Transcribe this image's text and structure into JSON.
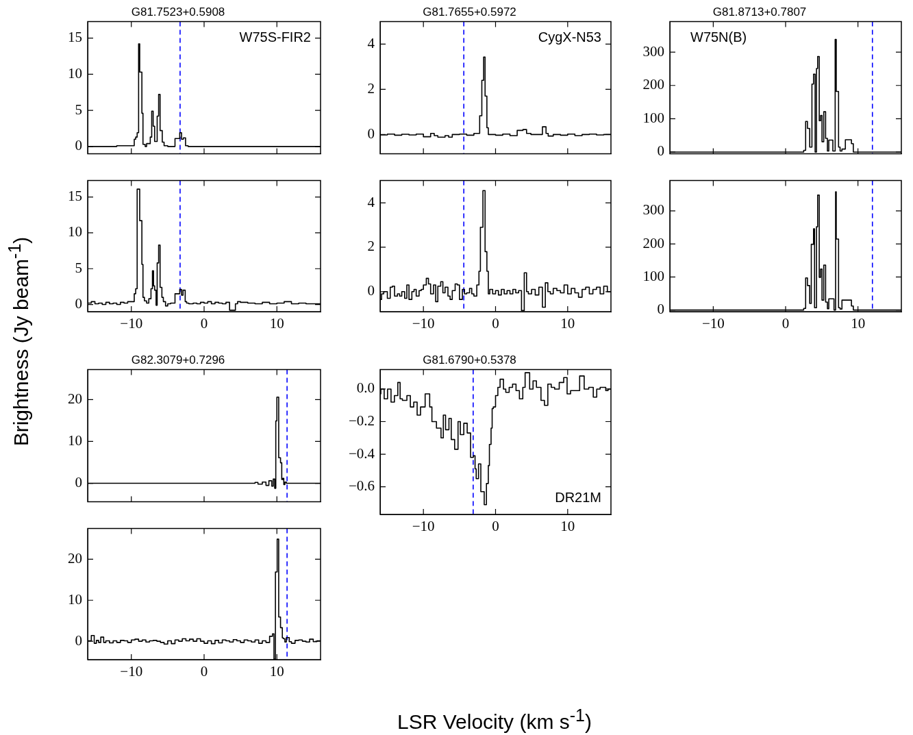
{
  "chart_data": [
    {
      "type": "step",
      "title": "G81.7523+0.5908",
      "ylabel": "Brightness (Jy beam$^{-1}$)",
      "annotations": [
        "W75S-FIR2"
      ],
      "xlim": [
        -16,
        16
      ],
      "ylim": [
        -1,
        17.3
      ],
      "xticks": [
        -10,
        0,
        10
      ],
      "yticks": [
        0,
        5,
        10,
        15
      ],
      "tick_labels": "y",
      "ref_lines": [
        {
          "axis": "x",
          "value": -3.3,
          "color": "#0000ff",
          "line_style": "dashed"
        }
      ],
      "series": [
        {
          "color": "#000000",
          "x": [
            -16,
            -12,
            -9.6,
            -9.4,
            -9.2,
            -9.0,
            -8.85,
            -8.55,
            -8.4,
            -8.1,
            -7.9,
            -7.4,
            -7.2,
            -7.0,
            -6.8,
            -6.45,
            -6.25,
            -6.05,
            -5.75,
            -5.5,
            -5.0,
            -4.0,
            -3.35,
            -3.1,
            -2.85,
            -2.55,
            -2.2,
            -2.0,
            0,
            5,
            10,
            16
          ],
          "values": [
            0,
            0,
            0.1,
            1.0,
            1.3,
            1.9,
            14.2,
            10.3,
            4.6,
            0.3,
            0,
            0.4,
            1.3,
            4.9,
            2.8,
            0.7,
            4.2,
            7.2,
            2.2,
            0.6,
            0.1,
            0,
            1.1,
            1.9,
            1.0,
            1.2,
            0.1,
            0,
            0,
            0,
            0,
            0
          ]
        }
      ]
    },
    {
      "type": "step",
      "xlim": [
        -16,
        16
      ],
      "ylim": [
        -1,
        17.3
      ],
      "xticks": [
        -10,
        0,
        10
      ],
      "yticks": [
        0,
        5,
        10,
        15
      ],
      "ref_lines": [
        {
          "axis": "x",
          "value": -3.3,
          "color": "#0000ff",
          "line_style": "dashed"
        }
      ],
      "series": [
        {
          "color": "#000000",
          "x": [
            -16,
            -15.5,
            -15,
            -14.5,
            -14,
            -13.5,
            -13,
            -12.5,
            -12,
            -11.5,
            -11,
            -10.5,
            -10,
            -9.6,
            -9.4,
            -9.2,
            -8.85,
            -8.55,
            -8.4,
            -8.2,
            -7.9,
            -7.6,
            -7.3,
            -7.1,
            -6.95,
            -6.8,
            -6.6,
            -6.45,
            -6.25,
            -6.05,
            -5.8,
            -5.6,
            -5.3,
            -5.0,
            -4.6,
            -4.0,
            -3.35,
            -3.1,
            -2.9,
            -2.6,
            -2.4,
            -2.1,
            -1.5,
            -1,
            -0.5,
            0,
            0.5,
            1,
            1.5,
            2,
            2.5,
            3,
            3.5,
            4.3,
            4.6,
            5,
            6,
            7,
            8,
            9,
            10,
            11,
            12,
            13,
            14,
            15,
            16
          ],
          "values": [
            0.3,
            0.2,
            0.4,
            0.1,
            0.2,
            0,
            0.3,
            0.1,
            0.2,
            0,
            0.3,
            0.2,
            0.4,
            0.4,
            1.5,
            2.2,
            16.1,
            11.7,
            5.6,
            1.0,
            0.5,
            0.2,
            0.8,
            2.2,
            4.7,
            2.6,
            2.0,
            -0.1,
            5.8,
            8.3,
            2.4,
            1.0,
            0.4,
            -0.2,
            0.1,
            0.2,
            1.5,
            2.1,
            1.3,
            2.0,
            0.4,
            0.2,
            0.1,
            0.2,
            0.1,
            0.3,
            0.2,
            0.4,
            0.1,
            0.3,
            0.2,
            0.1,
            0.3,
            -0.8,
            0.1,
            0.4,
            0.3,
            0.2,
            0.1,
            0.3,
            0.1,
            0.2,
            0.4,
            0.1,
            0.2,
            0.1,
            0.1
          ]
        }
      ]
    },
    {
      "type": "step",
      "title": "G81.7655+0.5972",
      "annotations": [
        "CygX-N53"
      ],
      "xlim": [
        -16,
        16
      ],
      "ylim": [
        -0.85,
        5
      ],
      "xticks": [
        -10,
        0,
        10
      ],
      "yticks": [
        0,
        2,
        4
      ],
      "tick_labels": "y",
      "ref_lines": [
        {
          "axis": "x",
          "value": -4.4,
          "color": "#0000ff",
          "line_style": "dashed"
        }
      ],
      "series": [
        {
          "color": "#000000",
          "x": [
            -16,
            -15,
            -14,
            -13,
            -12,
            -11,
            -10,
            -9,
            -8.5,
            -8,
            -7,
            -6.5,
            -6,
            -5,
            -4,
            -3,
            -2.2,
            -1.9,
            -1.65,
            -1.45,
            -1.2,
            -1.0,
            -0.8,
            0,
            1,
            2,
            3,
            3.8,
            4.3,
            4.9,
            5.5,
            6.5,
            7.0,
            7.3,
            8,
            9,
            10,
            11,
            12,
            13,
            14,
            15,
            16
          ],
          "values": [
            0,
            -0.02,
            0.02,
            -0.03,
            0.01,
            -0.02,
            0.02,
            -0.1,
            0.05,
            -0.05,
            -0.12,
            -0.05,
            -0.12,
            0,
            0.02,
            -0.03,
            0.05,
            0.83,
            2.4,
            3.43,
            1.7,
            0.3,
            0,
            0,
            -0.03,
            0.02,
            -0.05,
            0.18,
            0.22,
            0.05,
            0,
            0,
            0.34,
            0.05,
            -0.07,
            0,
            -0.03,
            0.02,
            -0.05,
            0,
            0.02,
            -0.02,
            0
          ]
        }
      ]
    },
    {
      "type": "step",
      "xlim": [
        -16,
        16
      ],
      "ylim": [
        -0.9,
        5
      ],
      "xticks": [
        -10,
        0,
        10
      ],
      "yticks": [
        0,
        2,
        4
      ],
      "ref_lines": [
        {
          "axis": "x",
          "value": -4.4,
          "color": "#0000ff",
          "line_style": "dashed"
        }
      ],
      "series": [
        {
          "color": "#000000",
          "x": [
            -16,
            -15.8,
            -15.5,
            -15,
            -14.6,
            -14.3,
            -14,
            -13.6,
            -13.3,
            -13,
            -12.6,
            -12.3,
            -12,
            -11.6,
            -11.3,
            -11,
            -10.6,
            -10.3,
            -10,
            -9.6,
            -9.3,
            -9,
            -8.6,
            -8.3,
            -8,
            -7.6,
            -7.3,
            -7,
            -6.6,
            -6.3,
            -6,
            -5.6,
            -5.3,
            -5,
            -4.6,
            -4.3,
            -4,
            -3.6,
            -3.3,
            -3,
            -2.6,
            -2.3,
            -2.1,
            -1.75,
            -1.45,
            -1.2,
            -1.0,
            -0.8,
            -0.4,
            0,
            0.4,
            0.8,
            1.2,
            1.6,
            2,
            2.4,
            2.8,
            3.2,
            3.6,
            3.98,
            4.3,
            4.55,
            5,
            5.5,
            6,
            6.5,
            6.9,
            7.25,
            7.6,
            8,
            8.5,
            9,
            9.5,
            10,
            10.5,
            11,
            11.5,
            12,
            12.5,
            13,
            13.5,
            14,
            14.5,
            15,
            15.5,
            16
          ],
          "values": [
            0.1,
            -0.35,
            -0.1,
            0,
            -0.3,
            0.2,
            0.25,
            -0.2,
            -0.1,
            -0.2,
            0,
            -0.3,
            0.3,
            -0.35,
            0,
            0.1,
            -0.2,
            0.05,
            0.1,
            0.3,
            0.6,
            0.35,
            -0.1,
            0.3,
            -0.45,
            0.25,
            0.45,
            -0.05,
            0.2,
            -0.2,
            -0.35,
            0.05,
            0.35,
            0.3,
            -0.35,
            0.1,
            -0.1,
            -0.05,
            0.15,
            -0.1,
            -0.2,
            0.3,
            0.92,
            2.9,
            4.55,
            1.8,
            0.92,
            -0.1,
            0.1,
            -0.1,
            0.05,
            -0.15,
            0.1,
            -0.1,
            0.05,
            -0.1,
            0.1,
            -0.05,
            0.05,
            -0.85,
            0.85,
            0,
            -0.1,
            0.1,
            -0.15,
            0.2,
            -0.7,
            0.4,
            0,
            -0.1,
            0.15,
            0.05,
            -0.05,
            0.3,
            -0.1,
            0.15,
            -0.05,
            -0.25,
            0.1,
            0.2,
            -0.1,
            0.1,
            0.2,
            -0.1,
            0.25,
            0
          ]
        }
      ]
    },
    {
      "type": "step",
      "title": "G81.8713+0.7807",
      "annotations": [
        "W75N(B)"
      ],
      "xlim": [
        -16,
        16
      ],
      "ylim": [
        -5,
        392
      ],
      "xticks": [
        -10,
        0,
        10
      ],
      "yticks": [
        0,
        100,
        200,
        300
      ],
      "tick_labels": "y",
      "ref_lines": [
        {
          "axis": "x",
          "value": 12,
          "color": "#0000ff",
          "line_style": "dashed"
        }
      ],
      "series": [
        {
          "color": "#000000",
          "x": [
            -16,
            2.5,
            2.77,
            3.02,
            3.33,
            3.64,
            3.86,
            4.08,
            4.27,
            4.43,
            4.65,
            4.84,
            5.03,
            5.27,
            5.53,
            5.78,
            5.97,
            6.53,
            6.85,
            7.0,
            7.32,
            7.53,
            7.79,
            8.26,
            9.1,
            9.36,
            9.6,
            16
          ],
          "values": [
            0,
            0,
            5,
            92,
            71,
            15,
            204,
            234,
            0,
            251,
            287,
            94,
            110,
            31,
            121,
            41,
            3,
            36,
            3,
            338,
            182,
            15,
            3,
            9,
            37,
            25,
            0,
            0
          ]
        }
      ]
    },
    {
      "type": "step",
      "xlim": [
        -16,
        16
      ],
      "ylim": [
        -5,
        392
      ],
      "xticks": [
        -10,
        0,
        10
      ],
      "yticks": [
        0,
        100,
        200,
        300
      ],
      "ref_lines": [
        {
          "axis": "x",
          "value": 12,
          "color": "#0000ff",
          "line_style": "dashed"
        }
      ],
      "series": [
        {
          "color": "#000000",
          "x": [
            -16,
            2.5,
            2.77,
            3.02,
            3.33,
            3.55,
            3.86,
            4.0,
            4.27,
            4.43,
            4.65,
            4.84,
            5.03,
            5.27,
            5.53,
            5.78,
            5.97,
            6.69,
            6.91,
            7.0,
            7.32,
            7.53,
            7.79,
            9.1,
            9.36,
            9.6,
            16
          ],
          "values": [
            0,
            0,
            5,
            97,
            74,
            20,
            199,
            246,
            7,
            252,
            348,
            99,
            124,
            30,
            136,
            24,
            4,
            34,
            0,
            358,
            215,
            7,
            3,
            30,
            12,
            0,
            0
          ]
        }
      ]
    },
    {
      "type": "step",
      "title": "G82.3079+0.7296",
      "xlim": [
        -16,
        16
      ],
      "ylim": [
        -4.4,
        27.2
      ],
      "xticks": [
        -10,
        0,
        10
      ],
      "yticks": [
        0,
        10,
        20
      ],
      "tick_labels": "y",
      "ref_lines": [
        {
          "axis": "x",
          "value": 11.4,
          "color": "#0000ff",
          "line_style": "dashed"
        }
      ],
      "series": [
        {
          "color": "#000000",
          "x": [
            -16,
            7,
            7.4,
            8.0,
            8.5,
            8.9,
            9.3,
            9.5,
            9.7,
            9.85,
            10.0,
            10.25,
            10.5,
            10.67,
            10.82,
            10.95,
            11.1,
            11.3,
            11.6,
            16
          ],
          "values": [
            0,
            0,
            0.2,
            -0.2,
            0.3,
            -0.5,
            0.6,
            -0.7,
            1.0,
            -1.2,
            14.9,
            20.6,
            6.1,
            4.9,
            0.9,
            1.2,
            -0.3,
            0.3,
            0,
            0
          ]
        }
      ]
    },
    {
      "type": "step",
      "xlim": [
        -16,
        16
      ],
      "ylim": [
        -4.5,
        27.5
      ],
      "xticks": [
        -10,
        0,
        10
      ],
      "yticks": [
        0,
        10,
        20
      ],
      "ref_lines": [
        {
          "axis": "x",
          "value": 11.4,
          "color": "#0000ff",
          "line_style": "dashed"
        }
      ],
      "series": [
        {
          "color": "#000000",
          "x": [
            -16,
            -15.5,
            -15.1,
            -14.8,
            -14.5,
            -14.2,
            -13.8,
            -13.5,
            -13,
            -12.5,
            -12,
            -11.5,
            -11,
            -10.5,
            -10,
            -9.5,
            -9,
            -8.5,
            -8,
            -7.5,
            -7,
            -6.5,
            -6,
            -5.5,
            -5,
            -4.5,
            -4,
            -3.5,
            -3,
            -2.5,
            -2,
            -1.5,
            -1,
            -0.5,
            0,
            0.5,
            1,
            1.5,
            2,
            2.5,
            3,
            3.5,
            4,
            4.5,
            5,
            5.5,
            6,
            6.5,
            7,
            7.5,
            8,
            8.5,
            9,
            9.4,
            9.6,
            9.8,
            10.04,
            10.25,
            10.5,
            10.75,
            10.9,
            11.1,
            11.3,
            11.7,
            12,
            12.5,
            13,
            13.5,
            14,
            14.5,
            15,
            15.5,
            16
          ],
          "values": [
            0.3,
            0.1,
            1.4,
            -0.5,
            0.2,
            -0.3,
            1.0,
            -0.3,
            0.1,
            -0.4,
            0.1,
            -0.3,
            0.2,
            0.1,
            -0.3,
            0.3,
            0.5,
            0,
            0.3,
            -0.2,
            0.1,
            0.2,
            0,
            -0.3,
            -0.7,
            0.1,
            -0.6,
            0.3,
            0,
            0.6,
            0.1,
            0.5,
            0,
            0.6,
            0,
            -0.5,
            0.1,
            -0.6,
            0.2,
            -0.4,
            0.3,
            0.1,
            -0.2,
            0.4,
            0.1,
            -0.3,
            0.3,
            0.1,
            -0.2,
            0.3,
            -0.5,
            0.1,
            -0.3,
            1.2,
            1.8,
            -4.4,
            16.9,
            24.9,
            5.9,
            3.3,
            0.8,
            0.6,
            -0.2,
            0.9,
            -0.1,
            -0.5,
            0.2,
            0.3,
            0,
            -0.2,
            0.5,
            -0.1,
            0.1
          ]
        }
      ]
    },
    {
      "type": "step",
      "title": "G81.6790+0.5378",
      "xlabel": "LSR Velocity (km s$^{-1}$)",
      "annotations": [
        "DR21M"
      ],
      "xlim": [
        -16,
        16
      ],
      "ylim": [
        -0.77,
        0.12
      ],
      "xticks": [
        -10,
        0,
        10
      ],
      "yticks": [
        {
          "value": 0,
          "label": "0.0"
        },
        {
          "value": -0.2,
          "label": "−0.2"
        },
        {
          "value": -0.4,
          "label": "−0.4"
        },
        {
          "value": -0.6,
          "label": "−0.6"
        }
      ],
      "ref_lines": [
        {
          "axis": "x",
          "value": -3.1,
          "color": "#0000ff",
          "line_style": "dashed"
        }
      ],
      "series": [
        {
          "color": "#000000",
          "x": [
            -16,
            -15.9,
            -15.44,
            -14.97,
            -14.49,
            -14.02,
            -13.55,
            -13.23,
            -12.91,
            -12.29,
            -11.81,
            -11.34,
            -10.87,
            -10.4,
            -9.76,
            -9.13,
            -8.82,
            -8.19,
            -7.56,
            -7.24,
            -6.93,
            -6.46,
            -6.14,
            -5.67,
            -5.2,
            -4.88,
            -4.4,
            -3.93,
            -3.46,
            -3.08,
            -2.84,
            -2.68,
            -2.36,
            -2.04,
            -1.57,
            -1.26,
            -1.0,
            -0.85,
            -0.62,
            -0.47,
            -0.31,
            0,
            0.32,
            0.63,
            1.1,
            1.42,
            1.89,
            2.36,
            2.84,
            3.31,
            3.78,
            4.1,
            4.73,
            5.2,
            5.67,
            6.3,
            6.78,
            7.25,
            7.72,
            8.19,
            8.83,
            9.45,
            9.92,
            10.4,
            11.03,
            11.66,
            12.29,
            12.92,
            13.55,
            14.03,
            14.5,
            15.28,
            15.6,
            16
          ],
          "values": [
            -0.11,
            -0.03,
            0,
            -0.06,
            0,
            -0.08,
            -0.04,
            0.04,
            -0.06,
            -0.07,
            -0.04,
            -0.11,
            -0.08,
            -0.16,
            -0.11,
            -0.03,
            -0.11,
            -0.2,
            -0.24,
            -0.3,
            -0.16,
            -0.25,
            -0.18,
            -0.31,
            -0.37,
            -0.2,
            -0.28,
            -0.21,
            -0.27,
            -0.42,
            -0.41,
            -0.49,
            -0.55,
            -0.46,
            -0.63,
            -0.71,
            -0.58,
            -0.47,
            -0.34,
            -0.24,
            -0.12,
            -0.11,
            -0.04,
            0.01,
            0.06,
            0,
            -0.02,
            0.01,
            0.03,
            -0.01,
            -0.06,
            0.01,
            0.1,
            0,
            0.05,
            0.01,
            -0.07,
            -0.1,
            0.03,
            0.01,
            0,
            0.04,
            0.07,
            -0.03,
            -0.01,
            -0.01,
            0.08,
            0,
            0.01,
            -0.05,
            0,
            0.01,
            -0.01,
            0
          ]
        }
      ]
    }
  ]
}
